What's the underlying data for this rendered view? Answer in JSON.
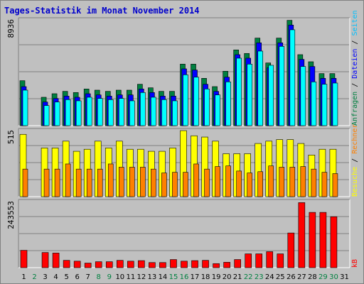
{
  "title": "Tages-Statistik im Monat November 2014",
  "side_labels": {
    "top": [
      {
        "text": "Anfragen",
        "color": "#008040"
      },
      {
        "text": " / ",
        "color": "#000000"
      },
      {
        "text": "Dateien",
        "color": "#0000ff"
      },
      {
        "text": " / ",
        "color": "#000000"
      },
      {
        "text": "Seiten",
        "color": "#00c0ff"
      }
    ],
    "middle": [
      {
        "text": "Besuche",
        "color": "#ffff00"
      },
      {
        "text": " / ",
        "color": "#000000"
      },
      {
        "text": "Rechner",
        "color": "#ff8000"
      }
    ],
    "bottom": [
      {
        "text": "kB",
        "color": "#ff0000"
      }
    ]
  },
  "colors": {
    "anfragen": "#008040",
    "dateien": "#0000ff",
    "seiten": "#00ffff",
    "besuche": "#ffff00",
    "rechner": "#ff8000",
    "kb": "#ff0000",
    "weekend": "#008040",
    "weekday": "#000000"
  },
  "chart_data": [
    {
      "type": "bar",
      "ymax_label": "8936",
      "ylim": [
        0,
        8936
      ],
      "categories": [
        "1",
        "2",
        "3",
        "4",
        "5",
        "6",
        "7",
        "8",
        "9",
        "10",
        "11",
        "12",
        "13",
        "14",
        "15",
        "16",
        "17",
        "18",
        "19",
        "20",
        "21",
        "22",
        "23",
        "24",
        "25",
        "26",
        "27",
        "28",
        "29",
        "30",
        "31"
      ],
      "series": [
        {
          "name": "Anfragen",
          "values": [
            3800,
            0,
            2400,
            2700,
            2900,
            2800,
            3100,
            3000,
            2900,
            3000,
            3000,
            3500,
            3200,
            2900,
            2900,
            5200,
            5200,
            4000,
            3300,
            4600,
            6400,
            6100,
            7400,
            5300,
            7400,
            8900,
            6000,
            5400,
            4400,
            4400,
            0
          ]
        },
        {
          "name": "Dateien",
          "values": [
            3300,
            0,
            2000,
            2300,
            2500,
            2400,
            2700,
            2600,
            2500,
            2600,
            2600,
            3100,
            2800,
            2500,
            2500,
            4800,
            4700,
            3500,
            2900,
            4100,
            6000,
            5700,
            7000,
            4900,
            7000,
            8500,
            5600,
            5000,
            4000,
            4000,
            0
          ]
        },
        {
          "name": "Seiten",
          "values": [
            3000,
            0,
            1700,
            2000,
            2200,
            2100,
            2400,
            2300,
            2200,
            2300,
            2100,
            2800,
            2400,
            2200,
            2100,
            4300,
            4100,
            3100,
            2600,
            3700,
            5700,
            5200,
            6300,
            5100,
            6700,
            8100,
            5000,
            3700,
            3500,
            3600,
            0
          ]
        }
      ]
    },
    {
      "type": "bar",
      "ymax_label": "515",
      "ylim": [
        0,
        515
      ],
      "categories": [
        "1",
        "2",
        "3",
        "4",
        "5",
        "6",
        "7",
        "8",
        "9",
        "10",
        "11",
        "12",
        "13",
        "14",
        "15",
        "16",
        "17",
        "18",
        "19",
        "20",
        "21",
        "22",
        "23",
        "24",
        "25",
        "26",
        "27",
        "28",
        "29",
        "30",
        "31"
      ],
      "series": [
        {
          "name": "Besuche",
          "values": [
            486,
            0,
            380,
            380,
            433,
            354,
            370,
            433,
            380,
            433,
            370,
            370,
            354,
            354,
            380,
            515,
            475,
            465,
            433,
            335,
            335,
            335,
            415,
            433,
            445,
            445,
            415,
            325,
            370,
            370,
            0
          ]
        },
        {
          "name": "Rechner",
          "values": [
            215,
            0,
            215,
            215,
            255,
            215,
            215,
            215,
            255,
            230,
            230,
            230,
            215,
            185,
            190,
            190,
            255,
            215,
            235,
            240,
            200,
            185,
            195,
            240,
            230,
            230,
            235,
            215,
            190,
            180,
            0
          ]
        }
      ]
    },
    {
      "type": "bar",
      "ymax_label": "243553",
      "ylim": [
        0,
        243553
      ],
      "categories": [
        "1",
        "2",
        "3",
        "4",
        "5",
        "6",
        "7",
        "8",
        "9",
        "10",
        "11",
        "12",
        "13",
        "14",
        "15",
        "16",
        "17",
        "18",
        "19",
        "20",
        "21",
        "22",
        "23",
        "24",
        "25",
        "26",
        "27",
        "28",
        "29",
        "30",
        "31"
      ],
      "series": [
        {
          "name": "kB",
          "values": [
            64000,
            0,
            56000,
            54000,
            27000,
            24000,
            17000,
            22000,
            22000,
            27000,
            24000,
            26000,
            19000,
            19000,
            30000,
            24000,
            26000,
            27000,
            15000,
            20000,
            30000,
            51000,
            51000,
            59000,
            51000,
            128000,
            240000,
            204000,
            204000,
            188000,
            0
          ]
        }
      ]
    }
  ],
  "weekend_days": [
    2,
    8,
    9,
    15,
    16,
    22,
    23,
    29,
    30
  ]
}
